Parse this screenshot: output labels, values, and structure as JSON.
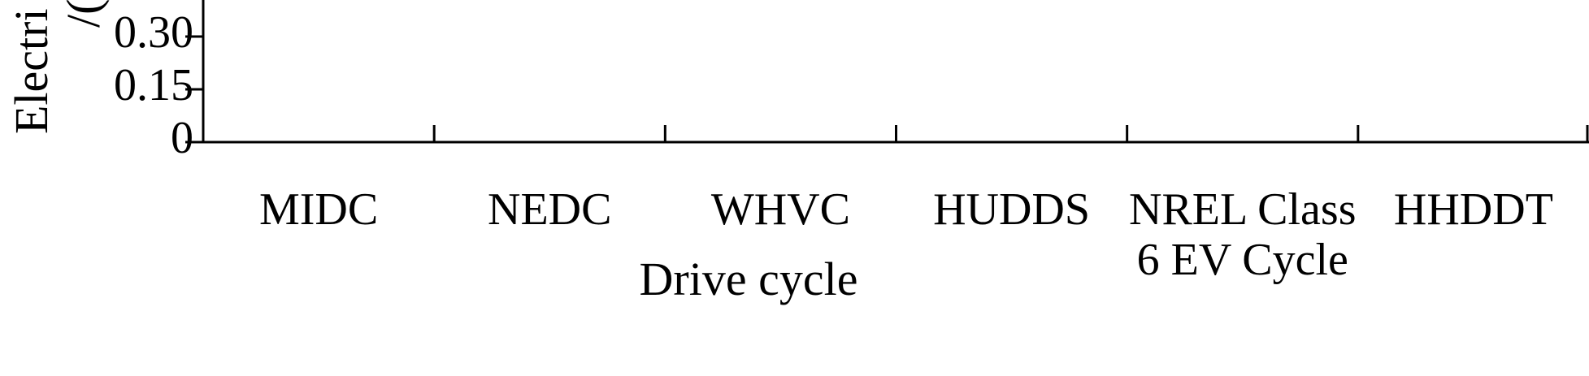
{
  "chart_data": {
    "type": "bar",
    "title": "",
    "xlabel": "Drive cycle",
    "ylabel_visible_fragments": [
      "Electri",
      "/("
    ],
    "categories": [
      [
        "MIDC"
      ],
      [
        "NEDC"
      ],
      [
        "WHVC"
      ],
      [
        "HUDDS"
      ],
      [
        "NREL Class",
        "6 EV Cycle"
      ],
      [
        "HHDDT"
      ]
    ],
    "yticks": [
      {
        "value": 0,
        "label": "0"
      },
      {
        "value": 0.15,
        "label": "0.15"
      },
      {
        "value": 0.3,
        "label": "0.30"
      }
    ],
    "ylim_visible": [
      0,
      0.3
    ],
    "grid": false,
    "legend": "none",
    "colors": {
      "axis": "#000000",
      "background": "#ffffff"
    }
  }
}
